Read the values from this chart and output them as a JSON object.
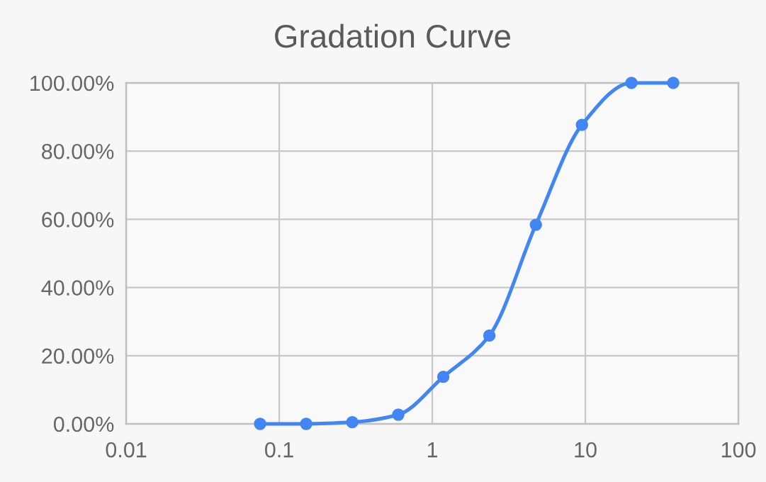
{
  "chart_data": {
    "type": "line",
    "title": "Gradation Curve",
    "x": [
      0.075,
      0.15,
      0.3,
      0.6,
      1.18,
      2.36,
      4.75,
      9.5,
      20,
      37.5
    ],
    "series": [
      {
        "color": "#4285f4",
        "values": [
          0,
          0,
          0.5,
          2.7,
          13.8,
          25.9,
          58.4,
          87.7,
          100,
          100
        ]
      }
    ],
    "log": "x",
    "xlim": [
      0.01,
      100
    ],
    "xticks": [
      0.01,
      0.1,
      1,
      10,
      100
    ],
    "ylim": [
      0,
      100
    ],
    "yticks": [
      {
        "value": 0,
        "label": "0.00%"
      },
      {
        "value": 20,
        "label": "20.00%"
      },
      {
        "value": 40,
        "label": "40.00%"
      },
      {
        "value": 60,
        "label": "60.00%"
      },
      {
        "value": 80,
        "label": "80.00%"
      },
      {
        "value": 100,
        "label": "100.00%"
      }
    ],
    "grid": true,
    "marker": "circle",
    "line_style": "solid"
  }
}
